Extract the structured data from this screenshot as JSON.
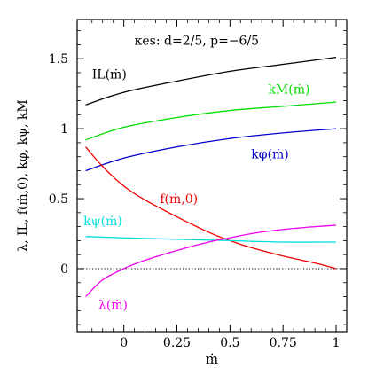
{
  "chart_data": {
    "type": "line",
    "title": "κes:  d=2/5,  p=−6/5",
    "xlabel": "ṁ",
    "ylabel": "λ,  IL,  f(ṁ,0),  kφ,  kψ,  kM",
    "xlim": [
      -0.22,
      1.05
    ],
    "ylim": [
      -0.45,
      1.78
    ],
    "x_ticks": [
      0,
      0.25,
      0.5,
      0.75,
      1
    ],
    "x_tick_labels": [
      "0",
      "0.25",
      "0.5",
      "0.75",
      "1"
    ],
    "y_ticks": [
      0,
      0.5,
      1,
      1.5
    ],
    "y_tick_labels": [
      "0",
      "0.5",
      "1",
      "1.5"
    ],
    "reference_line": {
      "y": 0,
      "style": "dotted",
      "color": "#000000"
    },
    "grid": false,
    "legend": "inline labels next to each curve",
    "series": [
      {
        "name": "IL(ṁ)",
        "color": "#000000",
        "x": [
          -0.18,
          0,
          0.25,
          0.5,
          0.75,
          1
        ],
        "y": [
          1.17,
          1.26,
          1.34,
          1.41,
          1.46,
          1.51
        ]
      },
      {
        "name": "kM(ṁ)",
        "color": "#00dd00",
        "x": [
          -0.18,
          0,
          0.25,
          0.5,
          0.75,
          1
        ],
        "y": [
          0.92,
          1.01,
          1.08,
          1.13,
          1.16,
          1.19
        ]
      },
      {
        "name": "kφ(ṁ)",
        "color": "#0000cc",
        "x": [
          -0.18,
          0,
          0.25,
          0.5,
          0.75,
          1
        ],
        "y": [
          0.7,
          0.79,
          0.87,
          0.93,
          0.97,
          1.0
        ]
      },
      {
        "name": "f(ṁ,0)",
        "color": "#ee0000",
        "x": [
          -0.18,
          -0.1,
          0,
          0.1,
          0.25,
          0.4,
          0.5,
          0.6,
          0.75,
          0.9,
          1
        ],
        "y": [
          0.87,
          0.73,
          0.59,
          0.49,
          0.37,
          0.26,
          0.2,
          0.15,
          0.09,
          0.04,
          0.0
        ]
      },
      {
        "name": "kψ(ṁ)",
        "color": "#00dddd",
        "x": [
          -0.18,
          0,
          0.25,
          0.5,
          0.75,
          1
        ],
        "y": [
          0.23,
          0.22,
          0.21,
          0.2,
          0.19,
          0.19
        ]
      },
      {
        "name": "λ(ṁ)",
        "color": "#ee00ee",
        "x": [
          -0.18,
          -0.1,
          0,
          0.1,
          0.25,
          0.4,
          0.5,
          0.6,
          0.75,
          0.9,
          1
        ],
        "y": [
          -0.2,
          -0.08,
          0.0,
          0.06,
          0.13,
          0.19,
          0.22,
          0.25,
          0.28,
          0.3,
          0.31
        ]
      }
    ],
    "labels": [
      {
        "text": "κes:  d=2/5,  p=−6/5",
        "x": 0.05,
        "y": 1.6,
        "color": "#000000"
      },
      {
        "text": "IL(ṁ)",
        "x": -0.15,
        "y": 1.36,
        "color": "#000000"
      },
      {
        "text": "kM(ṁ)",
        "x": 0.68,
        "y": 1.25,
        "color": "#00dd00"
      },
      {
        "text": "kφ(ṁ)",
        "x": 0.6,
        "y": 0.79,
        "color": "#0000cc"
      },
      {
        "text": "f(ṁ,0)",
        "x": 0.17,
        "y": 0.47,
        "color": "#ee0000"
      },
      {
        "text": "kψ(ṁ)",
        "x": -0.19,
        "y": 0.31,
        "color": "#00dddd"
      },
      {
        "text": "λ(ṁ)",
        "x": -0.12,
        "y": -0.29,
        "color": "#ee00ee"
      }
    ]
  }
}
